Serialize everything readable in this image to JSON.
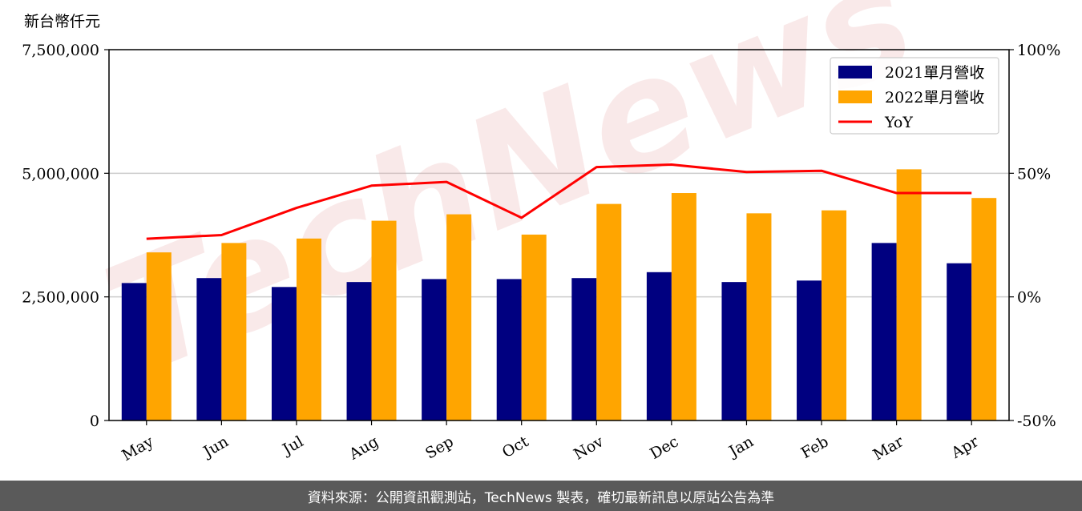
{
  "chart_data": {
    "type": "bar",
    "ylabel": "新台幣仟元",
    "categories": [
      "May",
      "Jun",
      "Jul",
      "Aug",
      "Sep",
      "Oct",
      "Nov",
      "Dec",
      "Jan",
      "Feb",
      "Mar",
      "Apr"
    ],
    "series": [
      {
        "name": "2021單月營收",
        "kind": "bar",
        "color": "#000080",
        "values": [
          2780000,
          2880000,
          2700000,
          2800000,
          2860000,
          2860000,
          2880000,
          3000000,
          2800000,
          2830000,
          3590000,
          3180000
        ]
      },
      {
        "name": "2022單月營收",
        "kind": "bar",
        "color": "#ffa500",
        "values": [
          3400000,
          3590000,
          3680000,
          4040000,
          4170000,
          3760000,
          4380000,
          4600000,
          4190000,
          4250000,
          5080000,
          4500000
        ]
      },
      {
        "name": "YoY",
        "kind": "line",
        "color": "#ff0000",
        "axis": "right",
        "values": [
          23.5,
          25.0,
          36.0,
          45.0,
          46.5,
          32.0,
          52.5,
          53.5,
          50.5,
          51.0,
          42.0,
          42.0
        ]
      }
    ],
    "ylim": [
      0,
      7500000
    ],
    "y_ticks": [
      0,
      2500000,
      5000000,
      7500000
    ],
    "y_tick_labels": [
      "0",
      "2,500,000",
      "5,000,000",
      "7,500,000"
    ],
    "y2lim": [
      -50,
      100
    ],
    "y2_ticks": [
      -50,
      0,
      50,
      100
    ],
    "y2_tick_labels": [
      "-50%",
      "0%",
      "50%",
      "100%"
    ],
    "grid": "horizontal",
    "legend_position": "top-right"
  },
  "watermark": "TechNews",
  "footer": "資料來源：公開資訊觀測站，TechNews 製表，確切最新訊息以原站公告為準"
}
